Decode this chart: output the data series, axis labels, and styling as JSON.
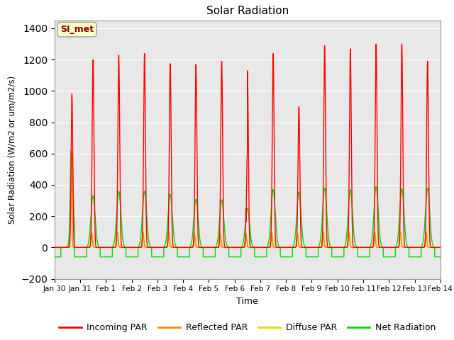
{
  "title": "Solar Radiation",
  "xlabel": "Time",
  "ylabel": "Solar Radiation (W/m2 or um/m2/s)",
  "ylim": [
    -200,
    1450
  ],
  "yticks": [
    -200,
    0,
    200,
    400,
    600,
    800,
    1000,
    1200,
    1400
  ],
  "x_tick_labels": [
    "Jan 30",
    "Jan 31",
    "Feb 1",
    "Feb 2",
    "Feb 3",
    "Feb 4",
    "Feb 5",
    "Feb 6",
    "Feb 7",
    "Feb 8",
    "Feb 9",
    "Feb 10",
    "Feb 11",
    "Feb 12",
    "Feb 13",
    "Feb 14"
  ],
  "legend_label_box": "SI_met",
  "colors": {
    "incoming": "#ff0000",
    "reflected": "#ff8800",
    "diffuse": "#dddd00",
    "net": "#00dd00",
    "background": "#e8e8e8",
    "grid": "#ffffff"
  },
  "legend_labels": [
    "Incoming PAR",
    "Reflected PAR",
    "Diffuse PAR",
    "Net Radiation"
  ],
  "n_days": 15,
  "night_net": -60,
  "figsize": [
    6.4,
    4.8
  ],
  "dpi": 100
}
